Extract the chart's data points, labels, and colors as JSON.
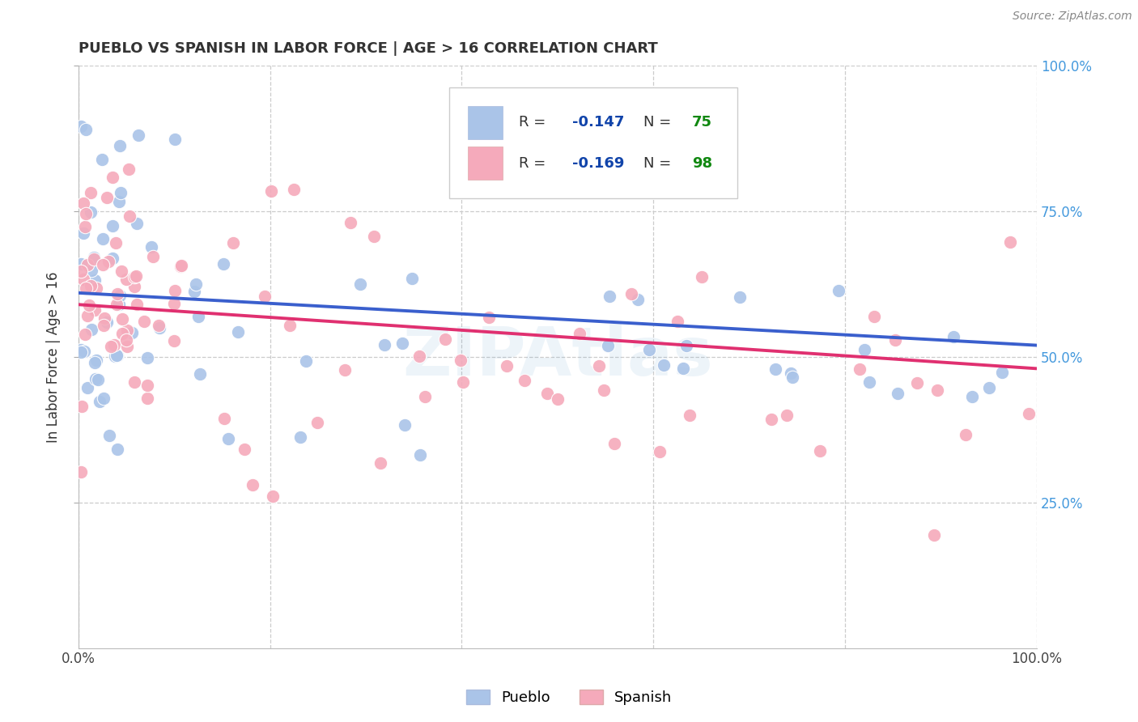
{
  "title": "PUEBLO VS SPANISH IN LABOR FORCE | AGE > 16 CORRELATION CHART",
  "source": "Source: ZipAtlas.com",
  "ylabel": "In Labor Force | Age > 16",
  "watermark": "ZIPAtlas",
  "pueblo_color": "#aac4e8",
  "spanish_color": "#f5aabb",
  "pueblo_line_color": "#3a5fcd",
  "spanish_line_color": "#e03070",
  "pueblo_R": -0.147,
  "pueblo_N": 75,
  "spanish_R": -0.169,
  "spanish_N": 98,
  "legend_text_color": "#1a3a8a",
  "legend_R_color": "#2255cc",
  "legend_N_color": "#1a9a1a",
  "xlim": [
    0.0,
    1.0
  ],
  "ylim": [
    0.0,
    1.0
  ],
  "grid_color": "#cccccc",
  "right_tick_color": "#4499dd"
}
